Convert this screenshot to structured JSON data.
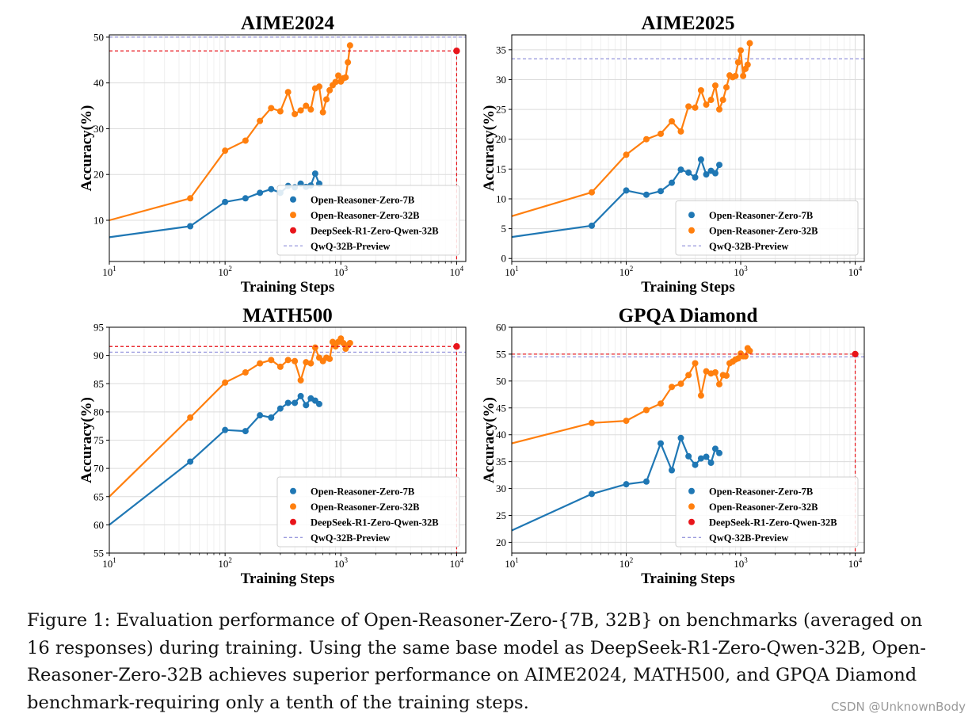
{
  "chart_data": [
    {
      "type": "line",
      "title": "AIME2024",
      "xlabel": "Training Steps",
      "ylabel": "Accuracy(%)",
      "xscale": "log",
      "xlim": [
        10,
        12000
      ],
      "ylim": [
        1,
        50.5
      ],
      "xticks": [
        10,
        100,
        1000,
        10000
      ],
      "yticks": [
        10,
        20,
        30,
        40,
        50
      ],
      "grid": true,
      "legend_position": "lower-right",
      "series": [
        {
          "name": "Open-Reasoner-Zero-7B",
          "color": "#1f77b4",
          "x": [
            10,
            50,
            100,
            150,
            200,
            250,
            300,
            350,
            400,
            450,
            500,
            550,
            600,
            650
          ],
          "y": [
            6.3,
            8.7,
            14.0,
            14.8,
            16.0,
            16.8,
            16.0,
            17.5,
            17.2,
            18.0,
            17.3,
            17.6,
            20.2,
            18.0
          ],
          "start_marker": false
        },
        {
          "name": "Open-Reasoner-Zero-32B",
          "color": "#ff7f0e",
          "x": [
            10,
            50,
            100,
            150,
            200,
            250,
            300,
            350,
            400,
            450,
            500,
            550,
            600,
            650,
            700,
            750,
            800,
            850,
            900,
            950,
            1000,
            1050,
            1100,
            1150,
            1200
          ],
          "y": [
            10.0,
            14.8,
            25.2,
            27.4,
            31.7,
            34.5,
            33.8,
            38.0,
            33.2,
            34.0,
            35.0,
            34.2,
            38.8,
            39.2,
            33.6,
            36.4,
            38.4,
            39.5,
            40.2,
            41.6,
            40.3,
            41.0,
            41.2,
            44.5,
            48.2
          ],
          "start_marker": false
        },
        {
          "name": "DeepSeek-R1-Zero-Qwen-32B",
          "color": "#e8151b",
          "x": [
            10000
          ],
          "y": [
            47.0
          ],
          "point": true
        }
      ],
      "reference_lines": [
        {
          "name": "QwQ-32B-Preview",
          "y": 50.0,
          "color": "#7b7bd4"
        }
      ],
      "legend": [
        "Open-Reasoner-Zero-7B",
        "Open-Reasoner-Zero-32B",
        "DeepSeek-R1-Zero-Qwen-32B",
        "QwQ-32B-Preview"
      ]
    },
    {
      "type": "line",
      "title": "AIME2025",
      "xlabel": "Training Steps",
      "ylabel": "Accuracy(%)",
      "xscale": "log",
      "xlim": [
        10,
        12000
      ],
      "ylim": [
        -0.5,
        37.5
      ],
      "xticks": [
        10,
        100,
        1000,
        10000
      ],
      "yticks": [
        0,
        5,
        10,
        15,
        20,
        25,
        30,
        35
      ],
      "grid": true,
      "legend_position": "lower-right",
      "series": [
        {
          "name": "Open-Reasoner-Zero-7B",
          "color": "#1f77b4",
          "x": [
            10,
            50,
            100,
            150,
            200,
            250,
            300,
            350,
            400,
            450,
            500,
            550,
            600,
            650
          ],
          "y": [
            3.6,
            5.5,
            11.4,
            10.7,
            11.3,
            12.7,
            14.9,
            14.4,
            13.6,
            16.6,
            14.1,
            14.7,
            14.3,
            15.7
          ],
          "start_marker": false
        },
        {
          "name": "Open-Reasoner-Zero-32B",
          "color": "#ff7f0e",
          "x": [
            10,
            50,
            100,
            150,
            200,
            250,
            300,
            350,
            400,
            450,
            500,
            550,
            600,
            650,
            700,
            750,
            800,
            850,
            900,
            950,
            1000,
            1050,
            1100,
            1150,
            1200
          ],
          "y": [
            7.1,
            11.1,
            17.4,
            20.0,
            20.9,
            23.0,
            21.3,
            25.5,
            25.3,
            28.2,
            25.8,
            26.6,
            29.0,
            25.0,
            26.6,
            28.7,
            30.7,
            30.4,
            30.6,
            32.9,
            34.9,
            30.6,
            31.8,
            32.5,
            36.1
          ],
          "start_marker": false
        }
      ],
      "reference_lines": [
        {
          "name": "QwQ-32B-Preview",
          "y": 33.5,
          "color": "#7b7bd4"
        }
      ],
      "legend": [
        "Open-Reasoner-Zero-7B",
        "Open-Reasoner-Zero-32B",
        "QwQ-32B-Preview"
      ]
    },
    {
      "type": "line",
      "title": "MATH500",
      "xlabel": "Training Steps",
      "ylabel": "Accuracy(%)",
      "xscale": "log",
      "xlim": [
        10,
        12000
      ],
      "ylim": [
        55,
        95
      ],
      "xticks": [
        10,
        100,
        1000,
        10000
      ],
      "yticks": [
        55,
        60,
        65,
        70,
        75,
        80,
        85,
        90,
        95
      ],
      "grid": true,
      "legend_position": "lower-right",
      "series": [
        {
          "name": "Open-Reasoner-Zero-7B",
          "color": "#1f77b4",
          "x": [
            10,
            50,
            100,
            150,
            200,
            250,
            300,
            350,
            400,
            450,
            500,
            550,
            600,
            650
          ],
          "y": [
            60.0,
            71.2,
            76.8,
            76.6,
            79.4,
            79.0,
            80.6,
            81.6,
            81.6,
            82.8,
            81.2,
            82.4,
            82.0,
            81.4
          ],
          "start_marker": false
        },
        {
          "name": "Open-Reasoner-Zero-32B",
          "color": "#ff7f0e",
          "x": [
            10,
            50,
            100,
            150,
            200,
            250,
            300,
            350,
            400,
            450,
            500,
            550,
            600,
            650,
            700,
            750,
            800,
            850,
            900,
            950,
            1000,
            1050,
            1100,
            1150,
            1200
          ],
          "y": [
            65.0,
            79.0,
            85.2,
            87.0,
            88.6,
            89.2,
            88.0,
            89.2,
            89.0,
            85.6,
            88.8,
            88.6,
            91.4,
            89.6,
            89.0,
            89.6,
            89.4,
            92.4,
            91.6,
            92.4,
            93.0,
            92.2,
            91.2,
            91.8,
            92.2
          ],
          "start_marker": false
        },
        {
          "name": "DeepSeek-R1-Zero-Qwen-32B",
          "color": "#e8151b",
          "x": [
            10000
          ],
          "y": [
            91.6
          ],
          "point": true
        }
      ],
      "reference_lines": [
        {
          "name": "QwQ-32B-Preview",
          "y": 90.6,
          "color": "#7b7bd4"
        }
      ],
      "legend": [
        "Open-Reasoner-Zero-7B",
        "Open-Reasoner-Zero-32B",
        "DeepSeek-R1-Zero-Qwen-32B",
        "QwQ-32B-Preview"
      ]
    },
    {
      "type": "line",
      "title": "GPQA Diamond",
      "xlabel": "Training Steps",
      "ylabel": "Accuracy(%)",
      "xscale": "log",
      "xlim": [
        10,
        12000
      ],
      "ylim": [
        18,
        60
      ],
      "xticks": [
        10,
        100,
        1000,
        10000
      ],
      "yticks": [
        20,
        25,
        30,
        35,
        40,
        45,
        50,
        55,
        60
      ],
      "grid": true,
      "legend_position": "lower-right",
      "series": [
        {
          "name": "Open-Reasoner-Zero-7B",
          "color": "#1f77b4",
          "x": [
            10,
            50,
            100,
            150,
            200,
            250,
            300,
            350,
            400,
            450,
            500,
            550,
            600,
            650
          ],
          "y": [
            22.2,
            29.0,
            30.8,
            31.3,
            38.4,
            33.4,
            39.4,
            36.0,
            34.4,
            35.6,
            35.9,
            34.8,
            37.4,
            36.6
          ],
          "start_marker": false
        },
        {
          "name": "Open-Reasoner-Zero-32B",
          "color": "#ff7f0e",
          "x": [
            10,
            50,
            100,
            150,
            200,
            250,
            300,
            350,
            400,
            450,
            500,
            550,
            600,
            650,
            700,
            750,
            800,
            850,
            900,
            950,
            1000,
            1050,
            1100,
            1150,
            1200
          ],
          "y": [
            38.4,
            42.2,
            42.6,
            44.6,
            45.8,
            48.9,
            49.5,
            51.1,
            53.3,
            47.3,
            51.8,
            51.4,
            51.6,
            49.4,
            51.1,
            51.0,
            53.3,
            53.6,
            54.0,
            54.2,
            55.1,
            54.6,
            54.6,
            56.1,
            55.6
          ],
          "start_marker": false
        },
        {
          "name": "DeepSeek-R1-Zero-Qwen-32B",
          "color": "#e8151b",
          "x": [
            10000
          ],
          "y": [
            55.0
          ],
          "point": true
        }
      ],
      "reference_lines": [
        {
          "name": "QwQ-32B-Preview",
          "y": 54.5,
          "color": "#7b7bd4"
        }
      ],
      "legend": [
        "Open-Reasoner-Zero-7B",
        "Open-Reasoner-Zero-32B",
        "DeepSeek-R1-Zero-Qwen-32B",
        "QwQ-32B-Preview"
      ]
    }
  ],
  "caption": {
    "text": "Figure 1: Evaluation performance of Open-Reasoner-Zero-{7B, 32B} on benchmarks (averaged on 16 responses) during training. Using the same base model as DeepSeek-R1-Zero-Qwen-32B, Open-Reasoner-Zero-32B achieves superior performance on AIME2024, MATH500, and GPQA Diamond benchmark-requiring only a tenth of the training steps."
  },
  "watermark": "CSDN @UnknownBody"
}
